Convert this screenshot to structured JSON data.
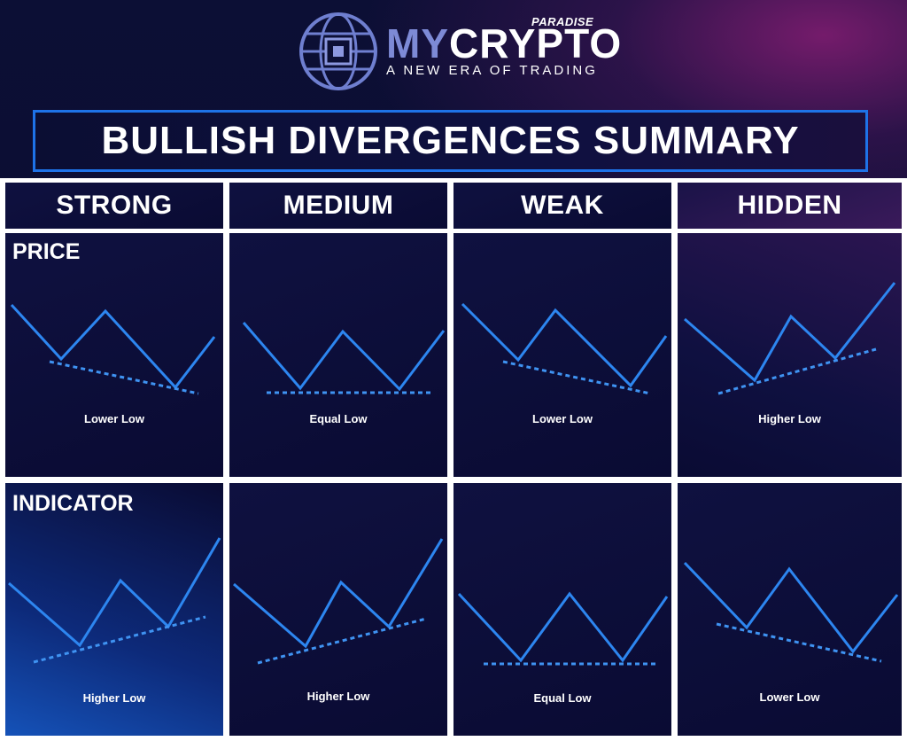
{
  "brand": {
    "my": "MY",
    "crypto": "CRYPTO",
    "paradise": "PARADISE",
    "tagline": "A NEW ERA OF TRADING",
    "logo_icon": "globe-chip-icon"
  },
  "title": "BULLISH DIVERGENCES SUMMARY",
  "colors": {
    "line": "#2d86f0",
    "dotted": "#3f93f2",
    "title_border": "#1e73e8",
    "background": "#0a0c2e"
  },
  "rows": {
    "price": "PRICE",
    "indicator": "INDICATOR"
  },
  "columns": [
    {
      "title": "STRONG",
      "price_label": "Lower Low",
      "indicator_label": "Higher Low"
    },
    {
      "title": "MEDIUM",
      "price_label": "Equal Low",
      "indicator_label": "Higher Low"
    },
    {
      "title": "WEAK",
      "price_label": "Lower Low",
      "indicator_label": "Equal Low"
    },
    {
      "title": "HIDDEN",
      "price_label": "Higher Low",
      "indicator_label": "Lower Low"
    }
  ]
}
